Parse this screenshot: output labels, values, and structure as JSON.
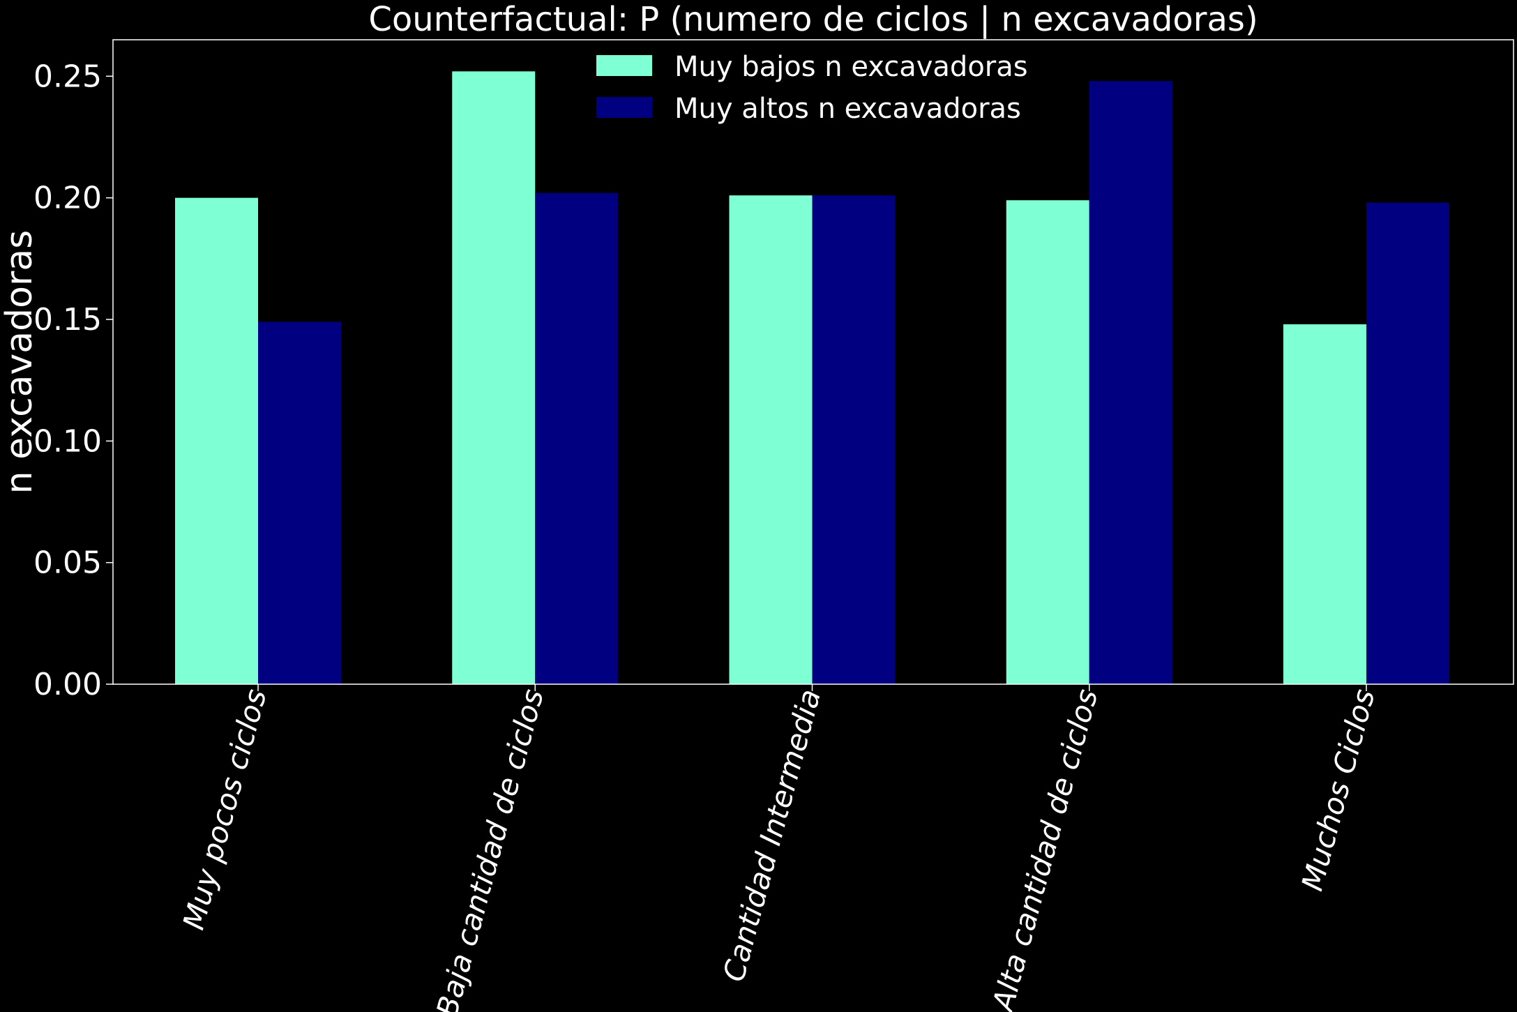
{
  "chart_data": {
    "type": "bar",
    "title": "Counterfactual: P (numero de ciclos | n excavadoras)",
    "xlabel": "",
    "ylabel": "n excavadoras",
    "categories": [
      "Muy pocos ciclos",
      "Baja cantidad de ciclos",
      "Cantidad Intermedia",
      "Alta cantidad de ciclos",
      "Muchos Ciclos"
    ],
    "series": [
      {
        "name": "Muy bajos n excavadoras",
        "color": "#7fffd4",
        "values": [
          0.2,
          0.252,
          0.201,
          0.199,
          0.148
        ]
      },
      {
        "name": "Muy altos n excavadoras",
        "color": "#000080",
        "values": [
          0.149,
          0.202,
          0.201,
          0.248,
          0.198
        ]
      }
    ],
    "ylim": [
      0,
      0.265
    ],
    "yticks": [
      0.0,
      0.05,
      0.1,
      0.15,
      0.2,
      0.25
    ],
    "ytick_labels": [
      "0.00",
      "0.05",
      "0.10",
      "0.15",
      "0.20",
      "0.25"
    ],
    "grid": false,
    "legend_position": "top-center",
    "background": "#000000",
    "text_color": "#ffffff"
  }
}
